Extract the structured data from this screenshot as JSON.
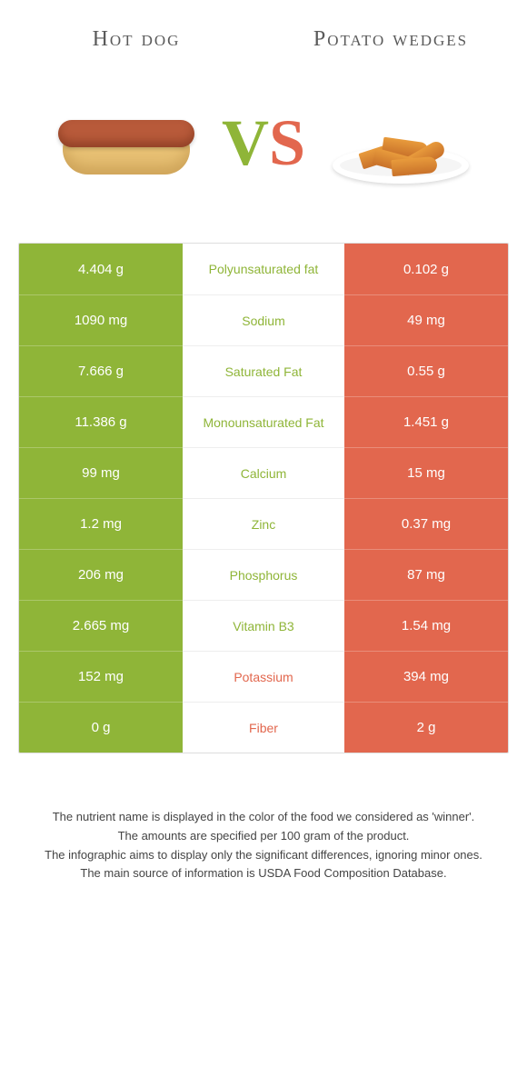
{
  "header": {
    "left_title": "Hot dog",
    "right_title": "Potato wedges"
  },
  "vs": {
    "v": "V",
    "s": "S"
  },
  "colors": {
    "left": "#8fb538",
    "right": "#e2674e",
    "background": "#ffffff",
    "row_border": "#eeeeee",
    "text": "#333333"
  },
  "table": {
    "rows": [
      {
        "left": "4.404 g",
        "label": "Polyunsaturated fat",
        "right": "0.102 g",
        "winner": "left"
      },
      {
        "left": "1090 mg",
        "label": "Sodium",
        "right": "49 mg",
        "winner": "left"
      },
      {
        "left": "7.666 g",
        "label": "Saturated Fat",
        "right": "0.55 g",
        "winner": "left"
      },
      {
        "left": "11.386 g",
        "label": "Monounsaturated Fat",
        "right": "1.451 g",
        "winner": "left"
      },
      {
        "left": "99 mg",
        "label": "Calcium",
        "right": "15 mg",
        "winner": "left"
      },
      {
        "left": "1.2 mg",
        "label": "Zinc",
        "right": "0.37 mg",
        "winner": "left"
      },
      {
        "left": "206 mg",
        "label": "Phosphorus",
        "right": "87 mg",
        "winner": "left"
      },
      {
        "left": "2.665 mg",
        "label": "Vitamin B3",
        "right": "1.54 mg",
        "winner": "left"
      },
      {
        "left": "152 mg",
        "label": "Potassium",
        "right": "394 mg",
        "winner": "right"
      },
      {
        "left": "0 g",
        "label": "Fiber",
        "right": "2 g",
        "winner": "right"
      }
    ]
  },
  "footnotes": [
    "The nutrient name is displayed in the color of the food we considered as 'winner'.",
    "The amounts are specified per 100 gram of the product.",
    "The infographic aims to display only the significant differences, ignoring minor ones.",
    "The main source of information is USDA Food Composition Database."
  ]
}
